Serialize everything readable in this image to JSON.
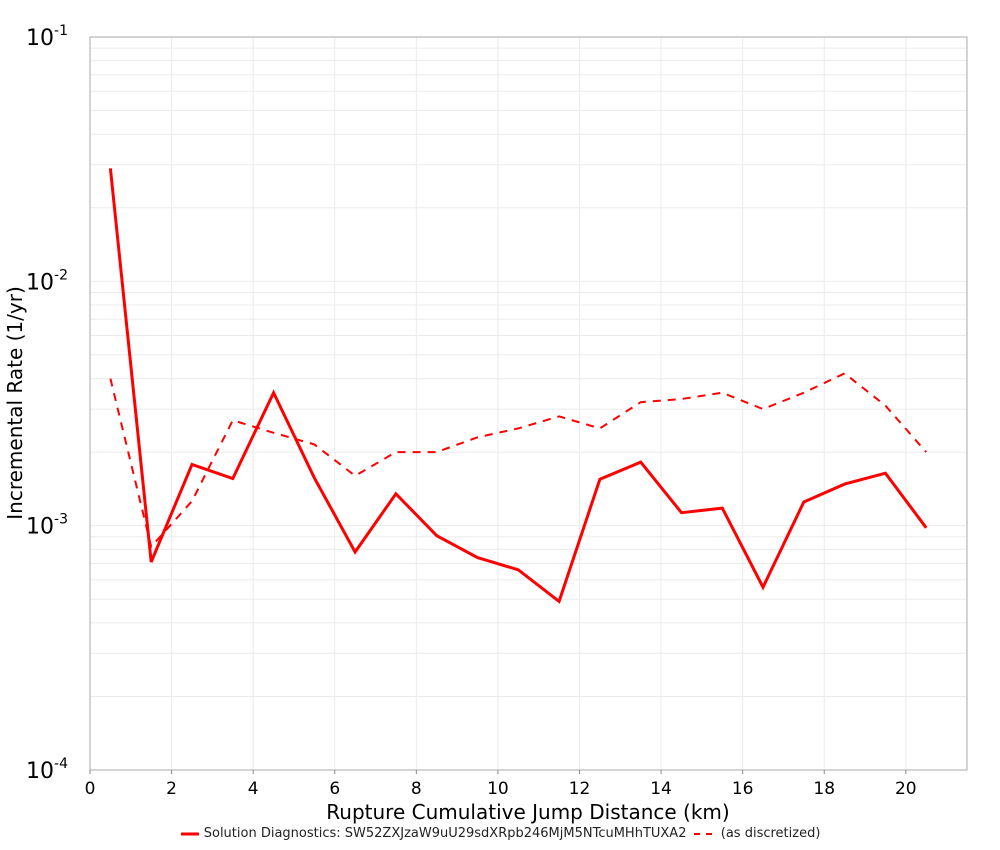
{
  "chart_data": {
    "type": "line",
    "title": "",
    "xlabel": "Rupture Cumulative Jump Distance (km)",
    "ylabel": "Incremental Rate (1/yr)",
    "xlim": [
      0,
      21.5
    ],
    "ylim": [
      0.0001,
      0.1
    ],
    "yscale": "log",
    "grid": true,
    "legend_position": "bottom",
    "x_ticks": [
      0,
      2,
      4,
      6,
      8,
      10,
      12,
      14,
      16,
      18,
      20
    ],
    "y_ticks": [
      {
        "exp": "-1",
        "value": 0.1
      },
      {
        "exp": "-2",
        "value": 0.01
      },
      {
        "exp": "-3",
        "value": 0.001
      },
      {
        "exp": "-4",
        "value": 0.0001
      }
    ],
    "x": [
      0.5,
      1.5,
      2.5,
      3.5,
      4.5,
      5.5,
      6.5,
      7.5,
      8.5,
      9.5,
      10.5,
      11.5,
      12.5,
      13.5,
      14.5,
      15.5,
      16.5,
      17.5,
      18.5,
      19.5,
      20.5
    ],
    "series": [
      {
        "name": "Solution Diagnostics: SW52ZXJzaW9uU29sdXRpb246MjM5NTcuMHhTUXA2",
        "style": "solid",
        "color": "#ff0000",
        "values": [
          0.029,
          0.00071,
          0.00178,
          0.00156,
          0.0035,
          0.00157,
          0.00078,
          0.00135,
          0.00091,
          0.00074,
          0.00066,
          0.00049,
          0.00155,
          0.00182,
          0.00113,
          0.00118,
          0.00056,
          0.00125,
          0.00148,
          0.00164,
          0.00098
        ]
      },
      {
        "name": "(as discretized)",
        "style": "dashed",
        "color": "#ff0000",
        "values": [
          0.004,
          0.00082,
          0.00126,
          0.0027,
          0.0024,
          0.00215,
          0.0016,
          0.002,
          0.002,
          0.0023,
          0.0025,
          0.0028,
          0.0025,
          0.0032,
          0.0033,
          0.0035,
          0.003,
          0.0035,
          0.0042,
          0.0031,
          0.002
        ]
      }
    ]
  },
  "legend": {
    "series1_label": "Solution Diagnostics: SW52ZXJzaW9uU29sdXRpb246MjM5NTcuMHhTUXA2",
    "series2_label": "(as discretized)"
  },
  "axes": {
    "xlabel": "Rupture Cumulative Jump Distance (km)",
    "ylabel": "Incremental Rate (1/yr)"
  }
}
